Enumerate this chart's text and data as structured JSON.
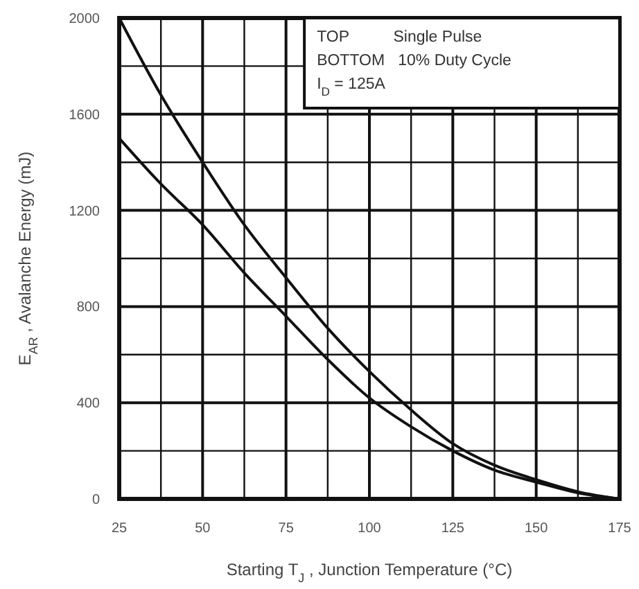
{
  "chart_data": {
    "type": "line",
    "xlabel": "Starting T$_{J}$ , Junction Temperature (°C)",
    "ylabel": "E$_{AR}$ , Avalanche Energy (mJ)",
    "annotations": [
      "TOP          Single Pulse",
      "BOTTOM   10% Duty Cycle",
      "I$_{D}$ = 125A"
    ],
    "x": [
      25,
      37.5,
      50,
      62.5,
      75,
      87.5,
      100,
      112.5,
      125,
      137.5,
      150,
      162.5,
      175
    ],
    "series": [
      {
        "color": "#111111",
        "values": [
          2000,
          1680,
          1400,
          1140,
          920,
          710,
          530,
          370,
          230,
          140,
          80,
          30,
          0
        ]
      },
      {
        "color": "#111111",
        "values": [
          1500,
          1310,
          1140,
          940,
          760,
          580,
          420,
          300,
          200,
          120,
          70,
          25,
          0
        ]
      }
    ],
    "xlim": [
      25,
      175
    ],
    "ylim": [
      0,
      2000
    ],
    "xticks": [
      25,
      {
        "value": 37.5,
        "label": null
      },
      50,
      {
        "value": 62.5,
        "label": null
      },
      75,
      {
        "value": 87.5,
        "label": null
      },
      100,
      {
        "value": 112.5,
        "label": null
      },
      125,
      {
        "value": 137.5,
        "label": null
      },
      150,
      {
        "value": 162.5,
        "label": null
      },
      175
    ],
    "yticks": [
      0,
      {
        "value": 200,
        "label": null
      },
      400,
      {
        "value": 600,
        "label": null
      },
      800,
      {
        "value": 1000,
        "label": null
      },
      1200,
      {
        "value": 1400,
        "label": null
      },
      1600,
      {
        "value": 1800,
        "label": null
      },
      2000
    ],
    "grid": true,
    "marker": "none",
    "line_style": "solid"
  }
}
